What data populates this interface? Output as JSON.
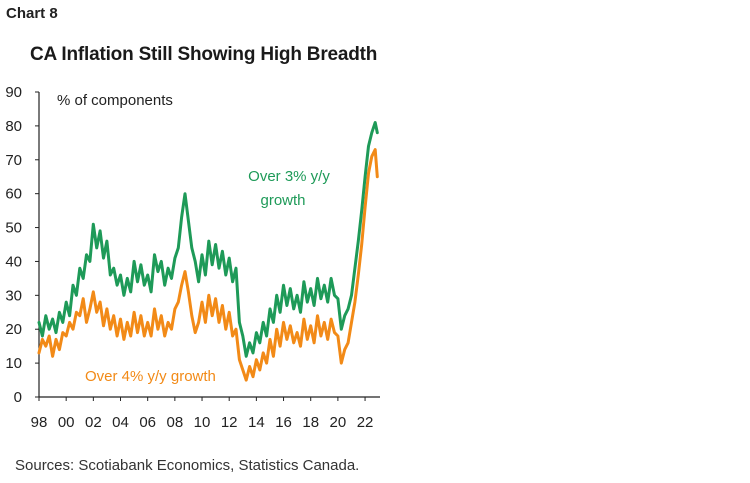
{
  "header": {
    "chart_number": "Chart 8"
  },
  "source_note": "Sources: Scotiabank Economics, Statistics Canada.",
  "colors": {
    "series_3pct": "#1e9a58",
    "series_4pct": "#f28a17",
    "axis": "#222222"
  },
  "chart_data": {
    "type": "line",
    "title": "CA Inflation Still Showing High Breadth",
    "xlabel": "",
    "ylabel": "% of components",
    "ylim": [
      0,
      90
    ],
    "y_ticks": [
      "0",
      "10",
      "20",
      "30",
      "40",
      "50",
      "60",
      "70",
      "80",
      "90"
    ],
    "x_range": [
      1998.0,
      2023.1
    ],
    "x_ticks": [
      {
        "value": 1998,
        "label": "98"
      },
      {
        "value": 2000,
        "label": "00"
      },
      {
        "value": 2002,
        "label": "02"
      },
      {
        "value": 2004,
        "label": "04"
      },
      {
        "value": 2006,
        "label": "06"
      },
      {
        "value": 2008,
        "label": "08"
      },
      {
        "value": 2010,
        "label": "10"
      },
      {
        "value": 2012,
        "label": "12"
      },
      {
        "value": 2014,
        "label": "14"
      },
      {
        "value": 2016,
        "label": "16"
      },
      {
        "value": 2018,
        "label": "18"
      },
      {
        "value": 2020,
        "label": "20"
      },
      {
        "value": 2022,
        "label": "22"
      }
    ],
    "grid": false,
    "annotations": {
      "series_3pct": [
        "Over 3% y/y",
        "growth"
      ],
      "series_4pct": "Over 4% y/y growth"
    },
    "series": [
      {
        "key": "over3",
        "color": "#1e9a58",
        "points": [
          [
            1998.0,
            22
          ],
          [
            1998.25,
            18
          ],
          [
            1998.5,
            24
          ],
          [
            1998.75,
            20
          ],
          [
            1999.0,
            23
          ],
          [
            1999.25,
            19
          ],
          [
            1999.5,
            25
          ],
          [
            1999.75,
            22
          ],
          [
            2000.0,
            28
          ],
          [
            2000.25,
            24
          ],
          [
            2000.5,
            33
          ],
          [
            2000.75,
            30
          ],
          [
            2001.0,
            38
          ],
          [
            2001.25,
            35
          ],
          [
            2001.5,
            42
          ],
          [
            2001.75,
            40
          ],
          [
            2002.0,
            51
          ],
          [
            2002.25,
            44
          ],
          [
            2002.5,
            49
          ],
          [
            2002.75,
            41
          ],
          [
            2003.0,
            46
          ],
          [
            2003.25,
            36
          ],
          [
            2003.5,
            38
          ],
          [
            2003.75,
            33
          ],
          [
            2004.0,
            36
          ],
          [
            2004.25,
            30
          ],
          [
            2004.5,
            35
          ],
          [
            2004.75,
            31
          ],
          [
            2005.0,
            40
          ],
          [
            2005.25,
            34
          ],
          [
            2005.5,
            39
          ],
          [
            2005.75,
            33
          ],
          [
            2006.0,
            36
          ],
          [
            2006.25,
            31
          ],
          [
            2006.5,
            42
          ],
          [
            2006.75,
            37
          ],
          [
            2007.0,
            40
          ],
          [
            2007.25,
            33
          ],
          [
            2007.5,
            38
          ],
          [
            2007.75,
            35
          ],
          [
            2008.0,
            41
          ],
          [
            2008.25,
            44
          ],
          [
            2008.5,
            53
          ],
          [
            2008.75,
            60
          ],
          [
            2009.0,
            52
          ],
          [
            2009.25,
            44
          ],
          [
            2009.5,
            40
          ],
          [
            2009.75,
            34
          ],
          [
            2010.0,
            42
          ],
          [
            2010.25,
            36
          ],
          [
            2010.5,
            46
          ],
          [
            2010.75,
            39
          ],
          [
            2011.0,
            45
          ],
          [
            2011.25,
            38
          ],
          [
            2011.5,
            43
          ],
          [
            2011.75,
            36
          ],
          [
            2012.0,
            41
          ],
          [
            2012.25,
            34
          ],
          [
            2012.5,
            38
          ],
          [
            2012.75,
            22
          ],
          [
            2013.0,
            18
          ],
          [
            2013.25,
            12
          ],
          [
            2013.5,
            16
          ],
          [
            2013.75,
            13
          ],
          [
            2014.0,
            19
          ],
          [
            2014.25,
            16
          ],
          [
            2014.5,
            22
          ],
          [
            2014.75,
            18
          ],
          [
            2015.0,
            26
          ],
          [
            2015.25,
            22
          ],
          [
            2015.5,
            30
          ],
          [
            2015.75,
            25
          ],
          [
            2016.0,
            33
          ],
          [
            2016.25,
            27
          ],
          [
            2016.5,
            32
          ],
          [
            2016.75,
            26
          ],
          [
            2017.0,
            30
          ],
          [
            2017.25,
            25
          ],
          [
            2017.5,
            34
          ],
          [
            2017.75,
            28
          ],
          [
            2018.0,
            32
          ],
          [
            2018.25,
            27
          ],
          [
            2018.5,
            35
          ],
          [
            2018.75,
            29
          ],
          [
            2019.0,
            33
          ],
          [
            2019.25,
            28
          ],
          [
            2019.5,
            35
          ],
          [
            2019.75,
            30
          ],
          [
            2020.0,
            29
          ],
          [
            2020.25,
            20
          ],
          [
            2020.5,
            24
          ],
          [
            2020.75,
            26
          ],
          [
            2021.0,
            30
          ],
          [
            2021.25,
            38
          ],
          [
            2021.5,
            46
          ],
          [
            2021.75,
            55
          ],
          [
            2022.0,
            65
          ],
          [
            2022.25,
            74
          ],
          [
            2022.5,
            78
          ],
          [
            2022.75,
            81
          ],
          [
            2022.9,
            78
          ]
        ]
      },
      {
        "key": "over4",
        "color": "#f28a17",
        "points": [
          [
            1998.0,
            13
          ],
          [
            1998.25,
            17
          ],
          [
            1998.5,
            15
          ],
          [
            1998.75,
            18
          ],
          [
            1999.0,
            12
          ],
          [
            1999.25,
            17
          ],
          [
            1999.5,
            14
          ],
          [
            1999.75,
            19
          ],
          [
            2000.0,
            18
          ],
          [
            2000.25,
            22
          ],
          [
            2000.5,
            20
          ],
          [
            2000.75,
            25
          ],
          [
            2001.0,
            24
          ],
          [
            2001.25,
            29
          ],
          [
            2001.5,
            22
          ],
          [
            2001.75,
            26
          ],
          [
            2002.0,
            31
          ],
          [
            2002.25,
            25
          ],
          [
            2002.5,
            28
          ],
          [
            2002.75,
            21
          ],
          [
            2003.0,
            26
          ],
          [
            2003.25,
            20
          ],
          [
            2003.5,
            24
          ],
          [
            2003.75,
            18
          ],
          [
            2004.0,
            23
          ],
          [
            2004.25,
            17
          ],
          [
            2004.5,
            22
          ],
          [
            2004.75,
            18
          ],
          [
            2005.0,
            25
          ],
          [
            2005.25,
            19
          ],
          [
            2005.5,
            24
          ],
          [
            2005.75,
            18
          ],
          [
            2006.0,
            22
          ],
          [
            2006.25,
            18
          ],
          [
            2006.5,
            26
          ],
          [
            2006.75,
            20
          ],
          [
            2007.0,
            24
          ],
          [
            2007.25,
            18
          ],
          [
            2007.5,
            22
          ],
          [
            2007.75,
            20
          ],
          [
            2008.0,
            26
          ],
          [
            2008.25,
            28
          ],
          [
            2008.5,
            33
          ],
          [
            2008.75,
            37
          ],
          [
            2009.0,
            31
          ],
          [
            2009.25,
            24
          ],
          [
            2009.5,
            19
          ],
          [
            2009.75,
            22
          ],
          [
            2010.0,
            28
          ],
          [
            2010.25,
            22
          ],
          [
            2010.5,
            30
          ],
          [
            2010.75,
            24
          ],
          [
            2011.0,
            29
          ],
          [
            2011.25,
            22
          ],
          [
            2011.5,
            27
          ],
          [
            2011.75,
            20
          ],
          [
            2012.0,
            25
          ],
          [
            2012.25,
            18
          ],
          [
            2012.5,
            20
          ],
          [
            2012.75,
            11
          ],
          [
            2013.0,
            8
          ],
          [
            2013.25,
            5
          ],
          [
            2013.5,
            9
          ],
          [
            2013.75,
            6
          ],
          [
            2014.0,
            11
          ],
          [
            2014.25,
            8
          ],
          [
            2014.5,
            13
          ],
          [
            2014.75,
            10
          ],
          [
            2015.0,
            17
          ],
          [
            2015.25,
            12
          ],
          [
            2015.5,
            20
          ],
          [
            2015.75,
            15
          ],
          [
            2016.0,
            22
          ],
          [
            2016.25,
            17
          ],
          [
            2016.5,
            21
          ],
          [
            2016.75,
            16
          ],
          [
            2017.0,
            19
          ],
          [
            2017.25,
            15
          ],
          [
            2017.5,
            23
          ],
          [
            2017.75,
            17
          ],
          [
            2018.0,
            21
          ],
          [
            2018.25,
            16
          ],
          [
            2018.5,
            24
          ],
          [
            2018.75,
            18
          ],
          [
            2019.0,
            22
          ],
          [
            2019.25,
            17
          ],
          [
            2019.5,
            23
          ],
          [
            2019.75,
            19
          ],
          [
            2020.0,
            18
          ],
          [
            2020.25,
            10
          ],
          [
            2020.5,
            14
          ],
          [
            2020.75,
            16
          ],
          [
            2021.0,
            22
          ],
          [
            2021.25,
            28
          ],
          [
            2021.5,
            36
          ],
          [
            2021.75,
            45
          ],
          [
            2022.0,
            56
          ],
          [
            2022.25,
            66
          ],
          [
            2022.5,
            71
          ],
          [
            2022.75,
            73
          ],
          [
            2022.9,
            65
          ]
        ]
      }
    ]
  }
}
